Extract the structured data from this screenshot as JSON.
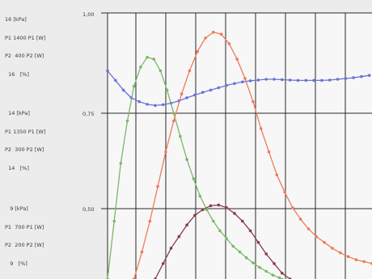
{
  "labels": {
    "top": {
      "l1": "16 [kPa]",
      "l2": "P1 1400 P1 [W]",
      "l3": "P2  400 P2 [W]",
      "l4": "  16   [%]"
    },
    "mid": {
      "l1": "  14 [kPa]",
      "l2": "P1 1350 P1 [W]",
      "l3": "P2  300 P2 [W]",
      "l4": "  14   [%]"
    },
    "bot": {
      "l1": "   9 [kPa]",
      "l2": "P1  700 P1 [W]",
      "l3": "P2  200 P2 [W]",
      "l4": "   9   [%]"
    }
  },
  "chart_data": {
    "type": "line",
    "y_ticks": [
      "1,00",
      "0,75",
      "0,50"
    ],
    "grid": true,
    "x_range": [
      0,
      10
    ],
    "y_range": [
      0.33,
      1.02
    ],
    "series": [
      {
        "color": "#6a72d8",
        "x": [
          0,
          0.3,
          0.6,
          0.9,
          1.2,
          1.5,
          1.8,
          2.1,
          2.4,
          2.7,
          3.0,
          3.3,
          3.6,
          3.9,
          4.2,
          4.5,
          4.8,
          5.1,
          5.4,
          5.7,
          6.0,
          6.3,
          6.6,
          6.9,
          7.2,
          7.5,
          7.8,
          8.1,
          8.4,
          8.7,
          9.0,
          9.3,
          9.6,
          9.9
        ],
        "y": [
          0.87,
          0.845,
          0.82,
          0.8,
          0.79,
          0.783,
          0.78,
          0.782,
          0.786,
          0.792,
          0.8,
          0.807,
          0.814,
          0.82,
          0.826,
          0.832,
          0.837,
          0.841,
          0.844,
          0.846,
          0.848,
          0.848,
          0.847,
          0.846,
          0.845,
          0.845,
          0.845,
          0.845,
          0.846,
          0.848,
          0.85,
          0.852,
          0.855,
          0.858
        ]
      },
      {
        "color": "#7ab86a",
        "x": [
          0,
          0.25,
          0.5,
          0.75,
          1.0,
          1.25,
          1.5,
          1.75,
          2.0,
          2.25,
          2.5,
          2.75,
          3.0,
          3.25,
          3.5,
          3.75,
          4.0,
          4.25,
          4.5,
          4.75,
          5.0,
          5.25,
          5.5,
          5.75,
          6.0,
          6.25,
          6.5,
          6.75,
          7.0
        ],
        "y": [
          0.33,
          0.48,
          0.63,
          0.74,
          0.83,
          0.88,
          0.905,
          0.9,
          0.87,
          0.82,
          0.76,
          0.7,
          0.64,
          0.59,
          0.545,
          0.51,
          0.48,
          0.455,
          0.435,
          0.415,
          0.4,
          0.385,
          0.372,
          0.36,
          0.35,
          0.34,
          0.333,
          0.328,
          0.325
        ]
      },
      {
        "color": "#ef7b5a",
        "x": [
          1.0,
          1.3,
          1.6,
          1.9,
          2.2,
          2.5,
          2.8,
          3.1,
          3.4,
          3.7,
          4.0,
          4.3,
          4.6,
          4.9,
          5.2,
          5.5,
          5.8,
          6.1,
          6.4,
          6.7,
          7.0,
          7.3,
          7.6,
          7.9,
          8.2,
          8.5,
          8.8,
          9.1,
          9.4,
          9.7,
          10.0
        ],
        "y": [
          0.33,
          0.4,
          0.48,
          0.57,
          0.66,
          0.74,
          0.81,
          0.87,
          0.92,
          0.955,
          0.97,
          0.965,
          0.94,
          0.9,
          0.85,
          0.79,
          0.72,
          0.66,
          0.6,
          0.555,
          0.515,
          0.485,
          0.46,
          0.44,
          0.425,
          0.41,
          0.398,
          0.388,
          0.38,
          0.375,
          0.37
        ]
      },
      {
        "color": "#8a3a52",
        "x": [
          1.8,
          2.1,
          2.4,
          2.7,
          3.0,
          3.3,
          3.6,
          3.9,
          4.2,
          4.5,
          4.8,
          5.1,
          5.4,
          5.7,
          6.0,
          6.3,
          6.6,
          6.9
        ],
        "y": [
          0.33,
          0.37,
          0.41,
          0.44,
          0.47,
          0.495,
          0.51,
          0.52,
          0.522,
          0.515,
          0.5,
          0.48,
          0.455,
          0.425,
          0.395,
          0.37,
          0.345,
          0.33
        ]
      }
    ]
  }
}
